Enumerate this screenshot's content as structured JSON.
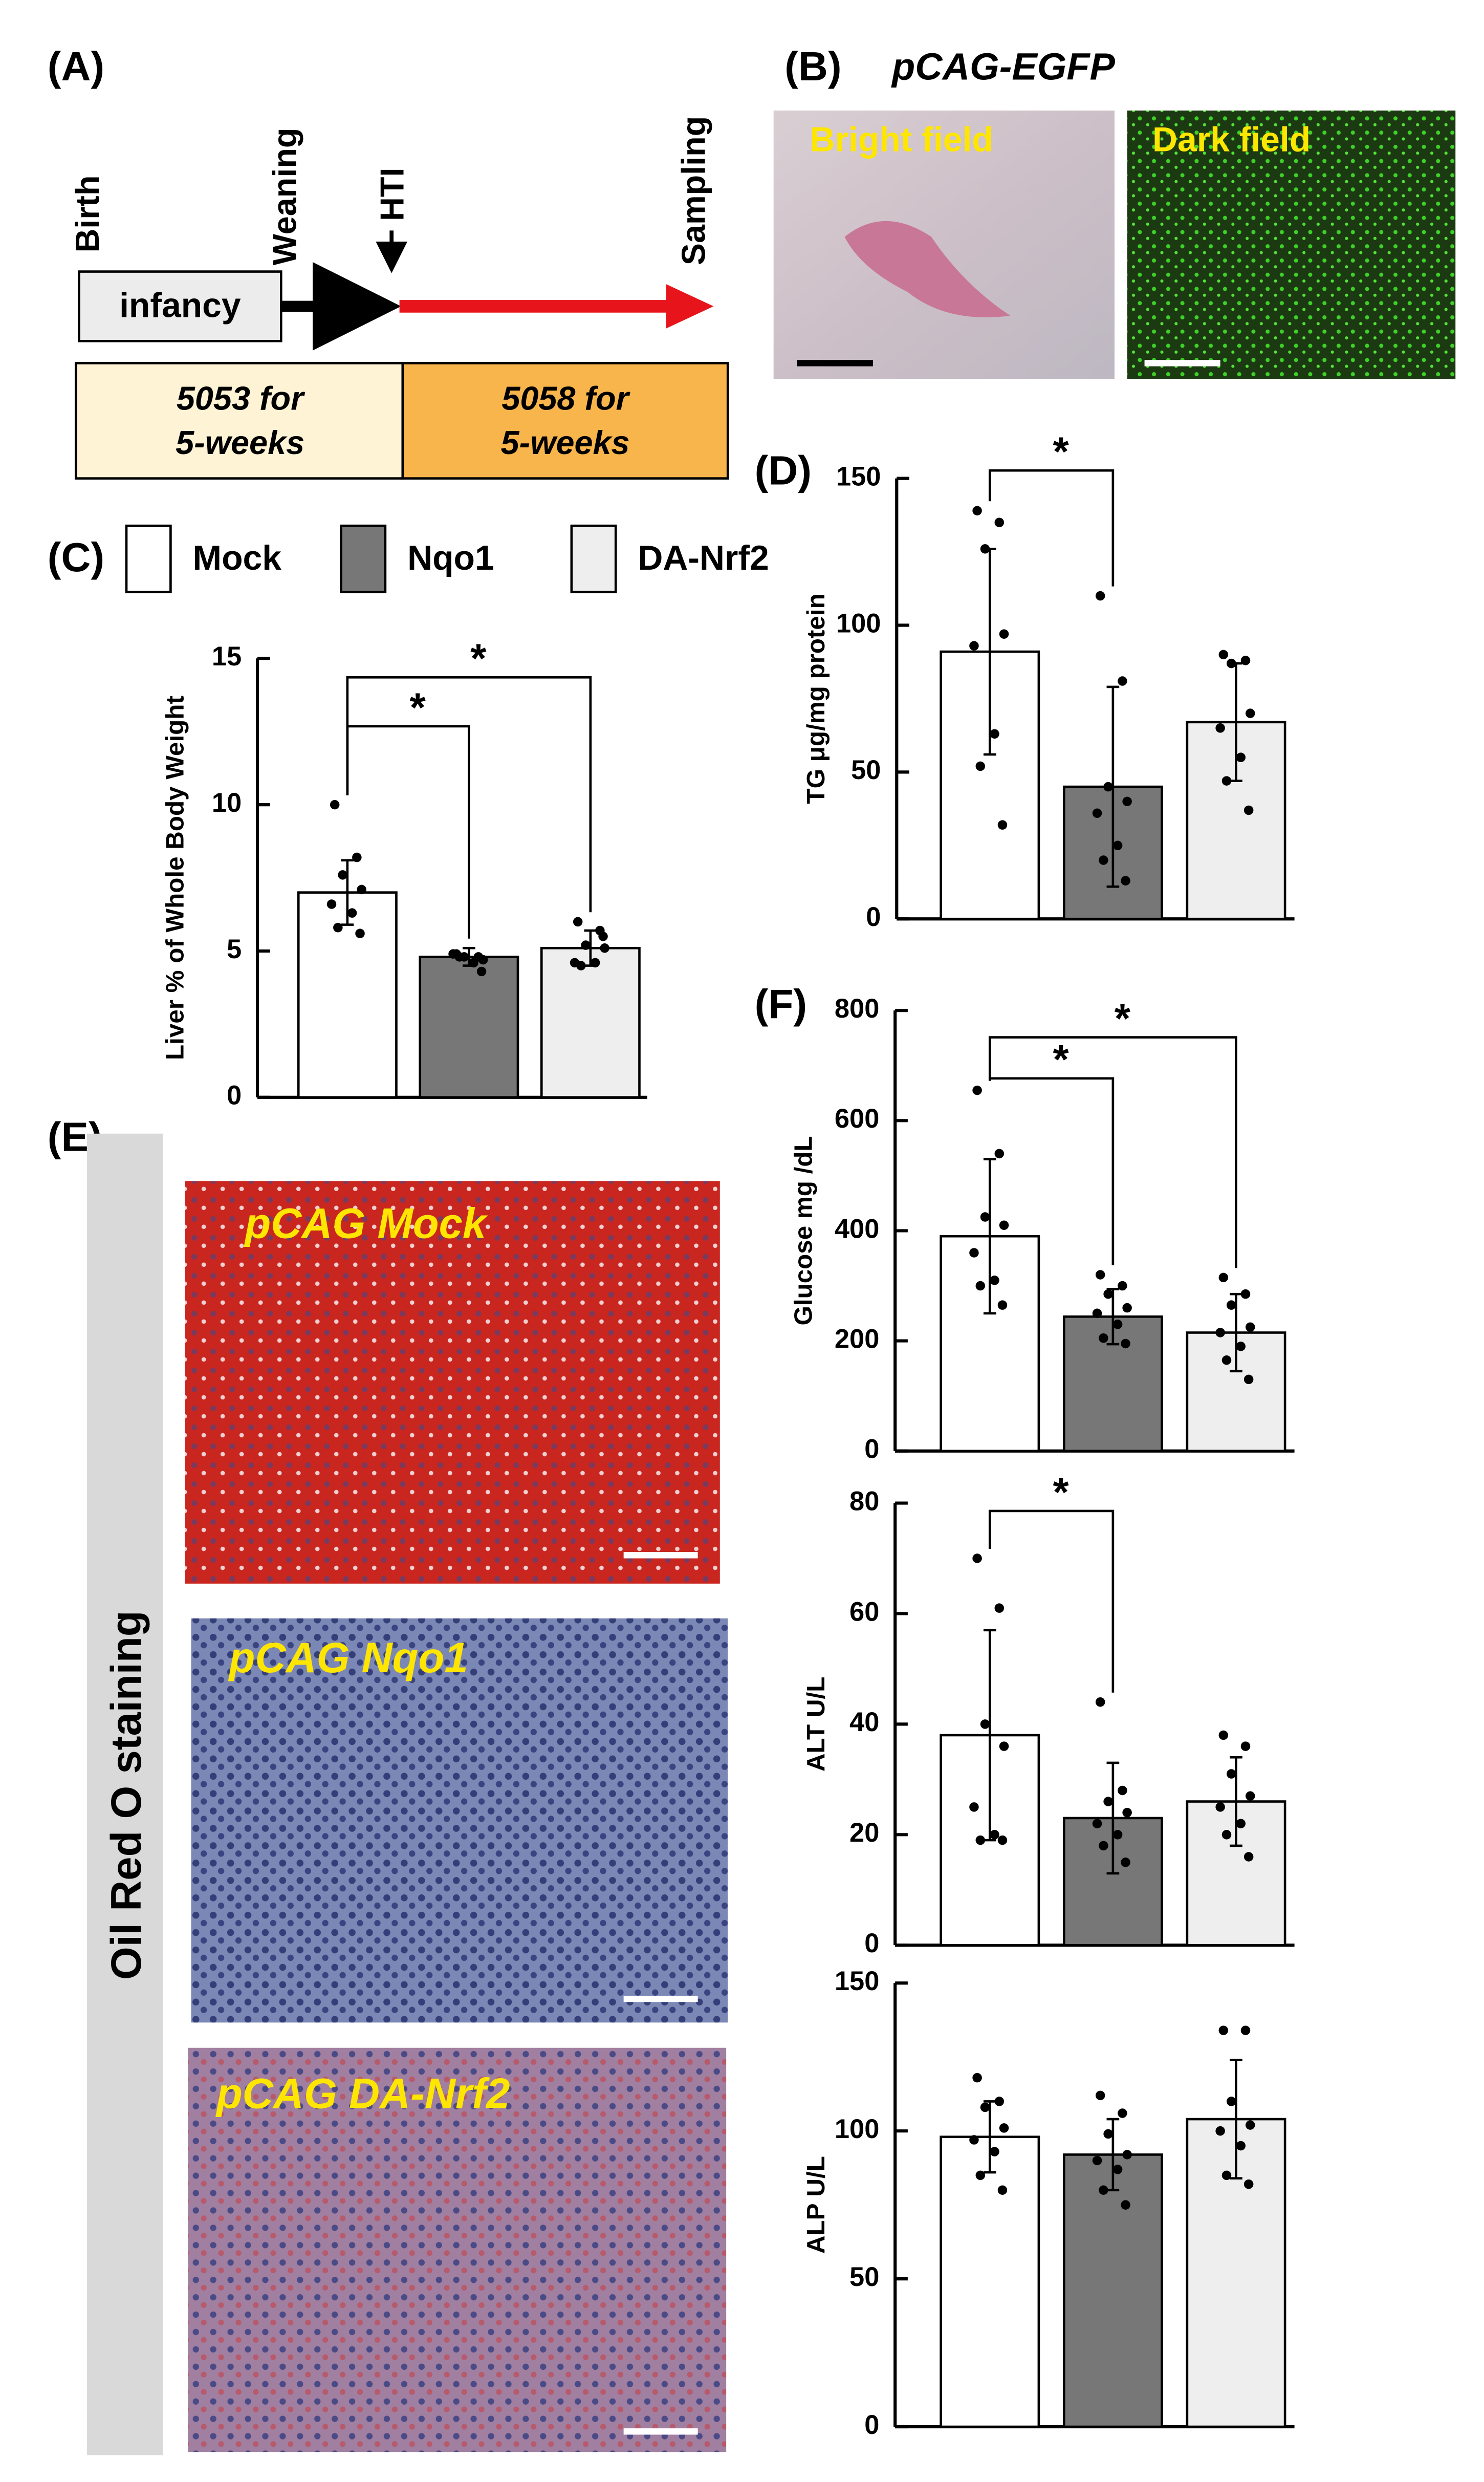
{
  "panel_labels": [
    "(A)",
    "(B)",
    "(C)",
    "(D)",
    "(E)",
    "(F)"
  ],
  "timeline": {
    "events": [
      "Birth",
      "Weaning",
      "HTI",
      "Sampling"
    ],
    "stage": "infancy",
    "periods": [
      [
        "5053 for",
        "5-weeks"
      ],
      [
        "5058 for",
        "5-weeks"
      ]
    ]
  },
  "imaging": {
    "title": "pCAG-EGFP",
    "panels": [
      "Bright field",
      "Dark field"
    ]
  },
  "staining": {
    "label": "Oil Red O staining",
    "panels": [
      "pCAG Mock",
      "pCAG Nqo1",
      "pCAG DA-Nrf2"
    ]
  },
  "chart_data": [
    {
      "type": "bar",
      "ylabel": "Liver % of Whole Body Weight",
      "categories": [
        "Mock",
        "Nqo1",
        "DA-Nrf2"
      ],
      "colors": [
        "#ffffff",
        "#777777",
        "#eeeeee"
      ],
      "values": [
        7.0,
        4.8,
        5.1
      ],
      "errors": [
        1.1,
        0.3,
        0.6
      ],
      "points": [
        [
          10.0,
          8.2,
          7.6,
          7.1,
          6.6,
          6.3,
          5.8,
          5.6
        ],
        [
          4.9,
          4.8,
          4.8,
          4.7,
          4.9,
          4.6,
          4.8,
          4.3
        ],
        [
          6.0,
          5.7,
          5.2,
          5.1,
          4.6,
          4.6,
          4.5,
          5.5
        ]
      ],
      "ylim": [
        0,
        15
      ],
      "yticks": [
        0,
        5,
        10,
        15
      ],
      "significance": [
        {
          "pair": [
            0,
            1
          ],
          "label": "*"
        },
        {
          "pair": [
            0,
            2
          ],
          "label": "*"
        }
      ]
    },
    {
      "type": "bar",
      "ylabel": "TG μg/mg protein",
      "colors": [
        "#ffffff",
        "#777777",
        "#eeeeee"
      ],
      "values": [
        91,
        45,
        67
      ],
      "errors": [
        35,
        34,
        20
      ],
      "points": [
        [
          139,
          135,
          126,
          97,
          93,
          63,
          52,
          32
        ],
        [
          110,
          81,
          45,
          40,
          36,
          25,
          20,
          13
        ],
        [
          90,
          88,
          87,
          70,
          65,
          55,
          47,
          37
        ]
      ],
      "ylim": [
        0,
        150
      ],
      "yticks": [
        0,
        50,
        100,
        150
      ],
      "significance": [
        {
          "pair": [
            0,
            1
          ],
          "label": "*"
        }
      ]
    },
    {
      "type": "bar",
      "ylabel": "Glucose mg /dL",
      "colors": [
        "#ffffff",
        "#777777",
        "#eeeeee"
      ],
      "values": [
        390,
        244,
        215
      ],
      "errors": [
        140,
        50,
        70
      ],
      "points": [
        [
          655,
          540,
          425,
          410,
          360,
          310,
          300,
          265
        ],
        [
          320,
          300,
          285,
          260,
          250,
          230,
          205,
          195
        ],
        [
          315,
          285,
          265,
          225,
          215,
          190,
          165,
          130
        ]
      ],
      "ylim": [
        0,
        800
      ],
      "yticks": [
        0,
        200,
        400,
        600,
        800
      ],
      "significance": [
        {
          "pair": [
            0,
            1
          ],
          "label": "*"
        },
        {
          "pair": [
            0,
            2
          ],
          "label": "*"
        }
      ]
    },
    {
      "type": "bar",
      "ylabel": "ALT U/L",
      "colors": [
        "#ffffff",
        "#777777",
        "#eeeeee"
      ],
      "values": [
        38,
        23,
        26
      ],
      "errors": [
        19,
        10,
        8
      ],
      "points": [
        [
          70,
          61,
          40,
          36,
          25,
          20,
          19,
          19
        ],
        [
          44,
          28,
          26,
          24,
          22,
          20,
          18,
          15
        ],
        [
          38,
          36,
          31,
          27,
          25,
          22,
          20,
          16
        ]
      ],
      "ylim": [
        0,
        80
      ],
      "yticks": [
        0,
        20,
        40,
        60,
        80
      ],
      "significance": [
        {
          "pair": [
            0,
            1
          ],
          "label": "*"
        }
      ]
    },
    {
      "type": "bar",
      "ylabel": "ALP U/L",
      "colors": [
        "#ffffff",
        "#777777",
        "#eeeeee"
      ],
      "values": [
        98,
        92,
        104
      ],
      "errors": [
        12,
        12,
        20
      ],
      "points": [
        [
          118,
          110,
          108,
          101,
          97,
          93,
          85,
          80
        ],
        [
          112,
          106,
          99,
          92,
          90,
          87,
          80,
          75
        ],
        [
          134,
          134,
          110,
          102,
          100,
          95,
          85,
          82
        ]
      ],
      "ylim": [
        0,
        150
      ],
      "yticks": [
        0,
        50,
        100,
        150
      ]
    }
  ]
}
